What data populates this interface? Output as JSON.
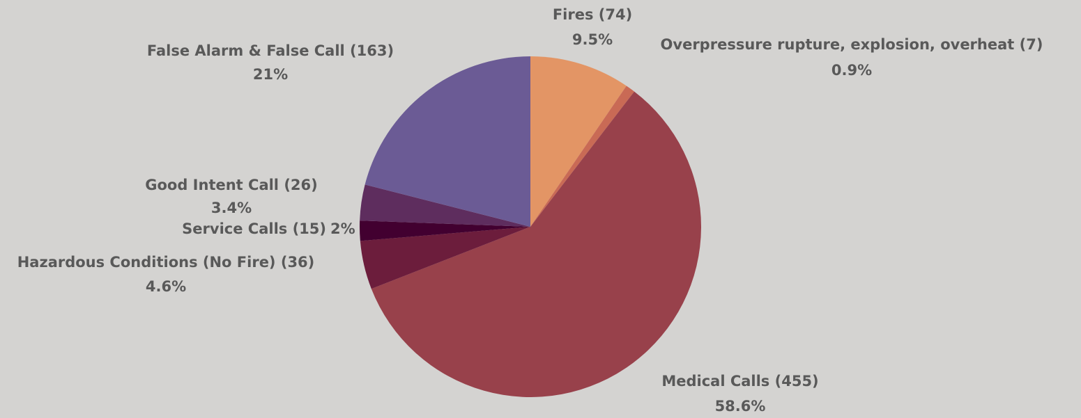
{
  "chart_data": {
    "type": "pie",
    "categories": [
      "Fires (74)",
      "Overpressure rupture, explosion, overheat (7)",
      "Medical Calls (455)",
      "Hazardous Conditions (No Fire) (36)",
      "Service Calls (15)",
      "Good Intent Call (26)",
      "False Alarm & False Call (163)"
    ],
    "values": [
      9.5,
      0.9,
      58.6,
      4.6,
      1.9,
      3.4,
      21
    ],
    "value_labels": [
      "9.5%",
      "0.9%",
      "58.6%",
      "4.6%",
      "2%",
      "3.4%",
      "21%"
    ],
    "colors": [
      "#e39565",
      "#c96a55",
      "#98414b",
      "#6c1d3c",
      "#420030",
      "#5e2d5e",
      "#6b5b95"
    ]
  }
}
